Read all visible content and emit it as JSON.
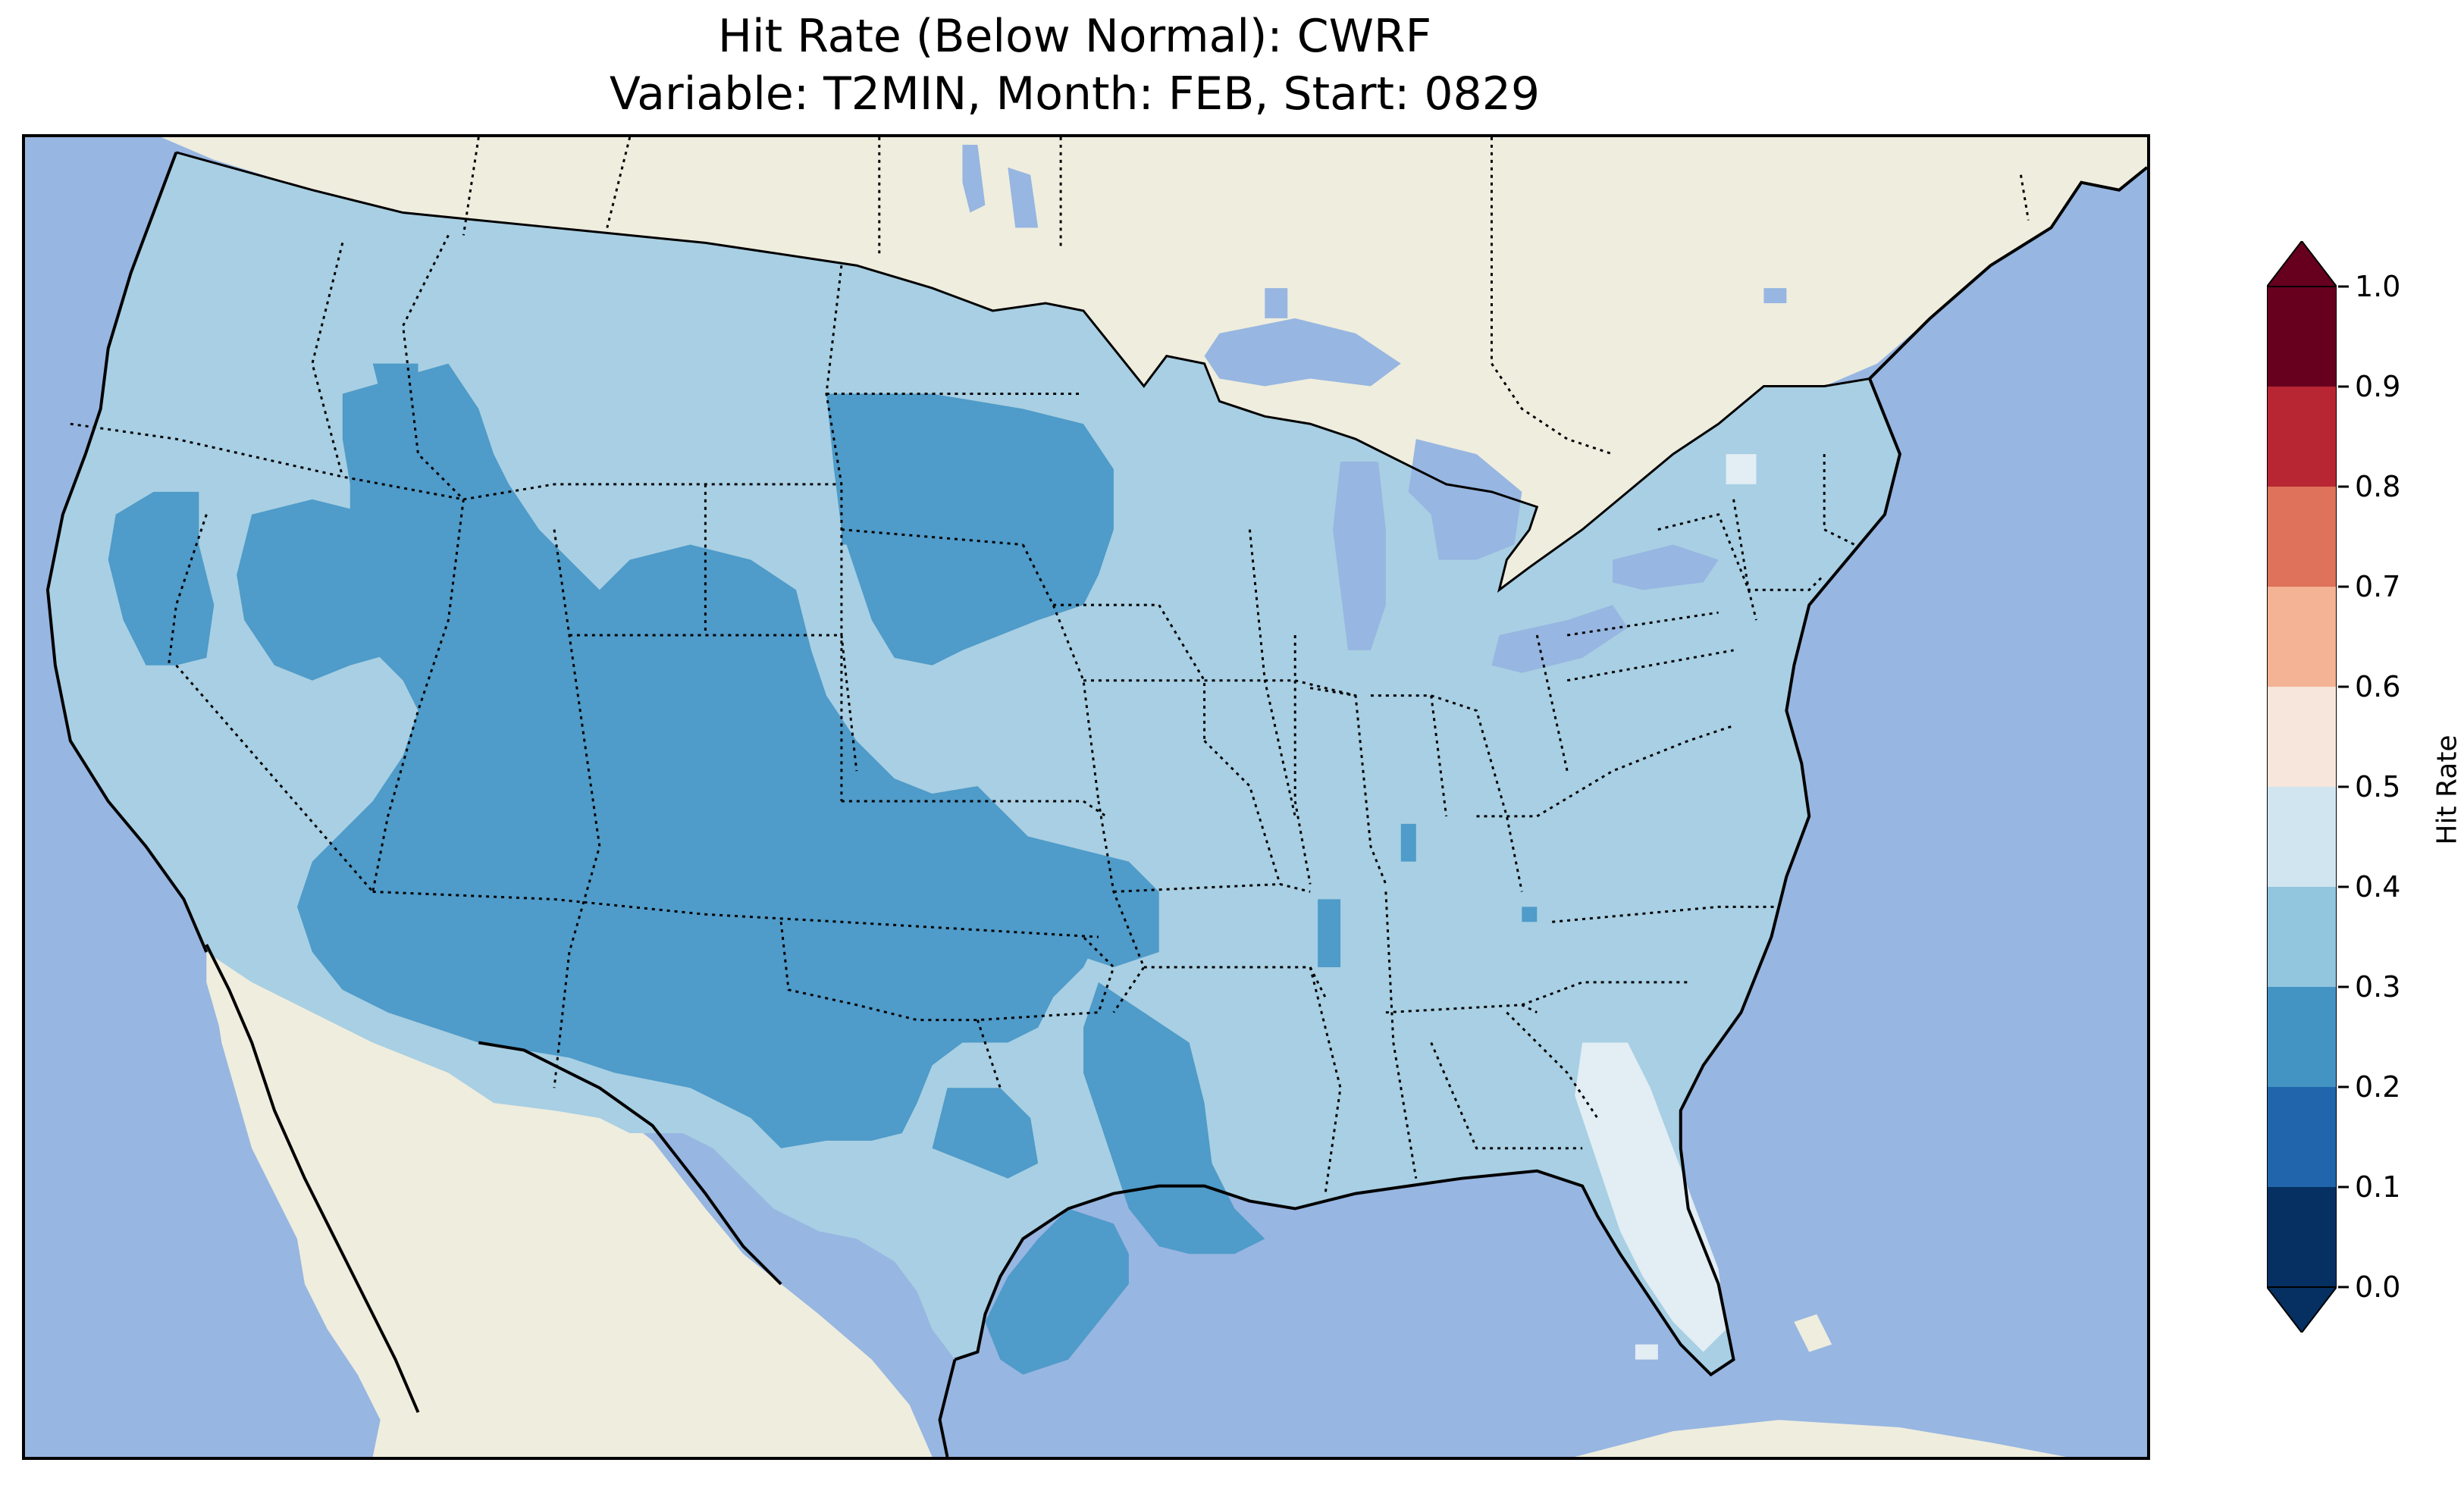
{
  "title": {
    "line1": "Hit Rate (Below Normal): CWRF",
    "line2": "Variable: T2MIN, Month: FEB, Start: 0829"
  },
  "map": {
    "variable": "T2MIN",
    "month": "FEB",
    "start": "0829",
    "model": "CWRF",
    "category": "Below Normal",
    "projection": "Lambert conformal, contiguous United States",
    "ocean_color": "#97b6e1",
    "land_color": "#efedde",
    "value_classes": [
      {
        "range": [
          0.2,
          0.3
        ],
        "color": "#4f9bc9",
        "regions": [
          "Great Basin",
          "Southwest",
          "Colorado Plateau",
          "Dakotas",
          "Texas",
          "Lower Mississippi"
        ]
      },
      {
        "range": [
          0.3,
          0.4
        ],
        "color": "#a8cfe3",
        "regions": [
          "Pacific Northwest",
          "Northern Rockies",
          "Midwest",
          "Great Lakes",
          "Northeast",
          "Southeast"
        ]
      },
      {
        "range": [
          0.4,
          0.5
        ],
        "color": "#e2edf4",
        "regions": [
          "Florida Peninsula",
          "Northern New York"
        ]
      }
    ]
  },
  "colorbar": {
    "label": "Hit Rate",
    "ticks": [
      "0.0",
      "0.1",
      "0.2",
      "0.3",
      "0.4",
      "0.5",
      "0.6",
      "0.7",
      "0.8",
      "0.9",
      "1.0"
    ],
    "bins": [
      {
        "range": [
          0.0,
          0.1
        ],
        "color": "#053061"
      },
      {
        "range": [
          0.1,
          0.2
        ],
        "color": "#2166ac"
      },
      {
        "range": [
          0.2,
          0.3
        ],
        "color": "#4393c3"
      },
      {
        "range": [
          0.3,
          0.4
        ],
        "color": "#92c5de"
      },
      {
        "range": [
          0.4,
          0.5
        ],
        "color": "#d1e5f0"
      },
      {
        "range": [
          0.5,
          0.6
        ],
        "color": "#f7e6dc"
      },
      {
        "range": [
          0.6,
          0.7
        ],
        "color": "#f4b394"
      },
      {
        "range": [
          0.7,
          0.8
        ],
        "color": "#de725a"
      },
      {
        "range": [
          0.8,
          0.9
        ],
        "color": "#b82633"
      },
      {
        "range": [
          0.9,
          1.0
        ],
        "color": "#67001f"
      }
    ],
    "extend": "both"
  }
}
